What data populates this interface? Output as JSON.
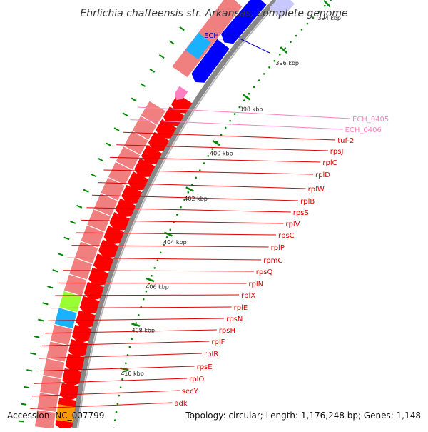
{
  "title": "Ehrlichia chaffeensis str. Arkansas, complete genome",
  "footer": {
    "accession": "Accession: NC_007799",
    "topology": "Topology: circular; Length: 1,176,248 bp; Genes: 1,148"
  },
  "colors": {
    "cds": "#ff0000",
    "cds_pink": "#f08080",
    "cyan": "#1ab2ff",
    "blue": "#0000ff",
    "green": "#99ff33",
    "orange": "#ff9900",
    "backbone": "#888888",
    "label_red": "#e00000",
    "label_pink": "#ff80c0",
    "label_blue": "#0000cc",
    "ticks": "#008800"
  },
  "scale": {
    "kbp_labels": [
      "394 kbp",
      "396 kbp",
      "398 kbp",
      "400 kbp",
      "402 kbp",
      "404 kbp",
      "406 kbp",
      "408 kbp",
      "410 kbp"
    ]
  },
  "genes": [
    {
      "name": "ECH_0404",
      "color": "label_blue"
    },
    {
      "name": "ECH_0405",
      "color": "label_pink"
    },
    {
      "name": "ECH_0406",
      "color": "label_pink"
    },
    {
      "name": "tuf-2",
      "color": "label_red"
    },
    {
      "name": "rpsJ",
      "color": "label_red"
    },
    {
      "name": "rplC",
      "color": "label_red"
    },
    {
      "name": "rplD",
      "color": "label_red"
    },
    {
      "name": "rplW",
      "color": "label_red"
    },
    {
      "name": "rplB",
      "color": "label_red"
    },
    {
      "name": "rpsS",
      "color": "label_red"
    },
    {
      "name": "rplV",
      "color": "label_red"
    },
    {
      "name": "rpsC",
      "color": "label_red"
    },
    {
      "name": "rplP",
      "color": "label_red"
    },
    {
      "name": "rpmC",
      "color": "label_red"
    },
    {
      "name": "rpsQ",
      "color": "label_red"
    },
    {
      "name": "rplN",
      "color": "label_red"
    },
    {
      "name": "rplX",
      "color": "label_red"
    },
    {
      "name": "rplE",
      "color": "label_red"
    },
    {
      "name": "rpsN",
      "color": "label_red"
    },
    {
      "name": "rpsH",
      "color": "label_red"
    },
    {
      "name": "rplF",
      "color": "label_red"
    },
    {
      "name": "rplR",
      "color": "label_red"
    },
    {
      "name": "rpsE",
      "color": "label_red"
    },
    {
      "name": "rplO",
      "color": "label_red"
    },
    {
      "name": "secY",
      "color": "label_red"
    },
    {
      "name": "adk",
      "color": "label_red"
    }
  ]
}
